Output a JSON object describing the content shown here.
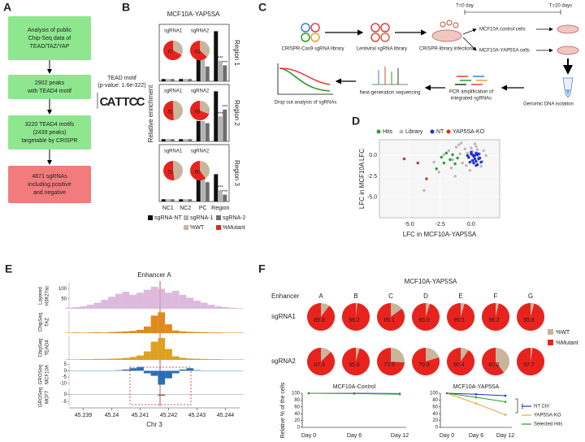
{
  "panel_a": {
    "label": "A",
    "steps": [
      [
        "Analysis of public",
        "Chip-Seq data of",
        "TEAD/TAZ/YAP"
      ],
      [
        "2902 peaks",
        "with TEAD4 motif"
      ],
      [
        "3220 TEAD4 motifs",
        "(2439 peaks)",
        "targetable by CRISPR"
      ],
      [
        "4871 sgRNAs",
        "including positive",
        "and negative"
      ]
    ],
    "motif_title": [
      "TEAD motif",
      "(p-value: 1.6e-322)"
    ],
    "motif_letters": [
      "C",
      "A",
      "T",
      "T",
      "C",
      "C"
    ]
  },
  "panel_c": {
    "label": "C",
    "texts": [
      [
        "T=0 day"
      ],
      [
        "T=20 days"
      ],
      [
        "MCF10A control cells"
      ],
      [
        "MCF10A-YAP5SA cells"
      ],
      [
        "CRISPR-Cas9 sgRNA library"
      ],
      [
        "Lentiviral sgRNA library"
      ],
      [
        "CRISPR-library infections"
      ],
      [
        "Genomic DNA isolation"
      ],
      [
        "PCR amplification of",
        "integrated sgRNAs"
      ],
      [
        "Next-generation sequencing"
      ],
      [
        "Drop out analysis of sgRNAs"
      ]
    ]
  },
  "chart_data": [
    {
      "label": "B",
      "type": "bar-panels",
      "title": "MCF10A-YAP5SA",
      "y_label": "Relative enrichment",
      "categories": [
        "NC1",
        "NC2",
        "PC",
        "Region"
      ],
      "series": [
        {
          "name": "sgRNA-NT",
          "color": "#111111"
        },
        {
          "name": "sgRNA-1",
          "color": "#b3b3b3"
        },
        {
          "name": "sgRNA-2",
          "color": "#6e6e6e"
        }
      ],
      "ylim": [
        0,
        25
      ],
      "pie_legend": [
        {
          "name": "%WT",
          "color": "#c9b59c"
        },
        {
          "name": "%Mutant",
          "color": "#e8231e"
        }
      ],
      "panels": [
        {
          "label": "Region 1",
          "values": [
            [
              1,
              1,
              10,
              22
            ],
            [
              1,
              1,
              9.5,
              9
            ],
            [
              1,
              1,
              6.5,
              7
            ]
          ],
          "sig": [
            "***",
            "***"
          ],
          "pies": [
            {
              "label": "sgRNA1",
              "value": 67
            },
            {
              "label": "sgRNA2",
              "value": 63
            }
          ]
        },
        {
          "label": "Region 2",
          "values": [
            [
              1,
              1,
              9,
              22
            ],
            [
              1,
              1,
              9,
              11
            ],
            [
              1,
              1,
              8,
              14
            ]
          ],
          "sig": [
            "***",
            "***"
          ],
          "pies": [
            {
              "label": "sgRNA1",
              "value": 51
            },
            {
              "label": "sgRNA2",
              "value": 69
            }
          ]
        },
        {
          "label": "Region 3",
          "values": [
            [
              1,
              1,
              10,
              12
            ],
            [
              1,
              1,
              10,
              5
            ],
            [
              1,
              1,
              8.5,
              3
            ]
          ],
          "sig": [
            "***",
            "***"
          ],
          "pies": [
            {
              "label": "sgRNA1",
              "value": 52
            },
            {
              "label": "sgRNA2",
              "value": 60
            }
          ]
        }
      ]
    },
    {
      "label": "D",
      "type": "scatter",
      "x_label": "LFC in MCF10A-YAP5SA",
      "y_label": "LFC in MCF10A LFC",
      "xlim": [
        -7.4,
        2.3
      ],
      "ylim": [
        -7.5,
        1.9
      ],
      "xticks": [
        {
          "value": -5,
          "label": "-5.0"
        },
        {
          "value": -2.5,
          "label": "-2.5"
        },
        {
          "value": 0,
          "label": "0.0"
        }
      ],
      "yticks": [
        {
          "value": 0,
          "label": "0.0"
        },
        {
          "value": -2.5,
          "label": "-2.5"
        },
        {
          "value": -5,
          "label": "-5.0"
        }
      ],
      "series": [
        {
          "name": "Hits",
          "color": "#2ca02c",
          "x": [
            -2.4,
            -2.0,
            -1.7,
            -1.3,
            -2.8,
            -1.5,
            -2.2,
            -1.1
          ],
          "y": [
            -0.2,
            0.3,
            -0.5,
            -1.0,
            -1.6,
            0.1,
            -0.9,
            -0.3
          ]
        },
        {
          "name": "Library",
          "color": "#b9b9b9",
          "x": [
            -1.8,
            -1.2,
            -0.9,
            -0.5,
            -0.2,
            0.1,
            0.4,
            0.7,
            1.0,
            -1.5,
            -0.7,
            -0.3,
            0.2,
            0.6,
            -1.0,
            -0.4,
            0.0,
            0.5,
            0.9,
            -2.2,
            -3.0,
            -1.6,
            -0.8,
            0.3,
            1.2,
            -2.6,
            -1.3,
            -0.1,
            0.8,
            -3.8
          ],
          "y": [
            0.6,
            1.0,
            0.2,
            0.8,
            -0.3,
            0.5,
            1.1,
            0.2,
            0.6,
            -0.5,
            -0.9,
            0.3,
            -0.6,
            -0.2,
            1.3,
            -1.2,
            0.9,
            0.7,
            -0.7,
            0.1,
            -0.8,
            -1.5,
            1.5,
            1.4,
            0.0,
            -2.0,
            -2.5,
            -1.8,
            -1.3,
            -4.2
          ]
        },
        {
          "name": "NT",
          "color": "#1f2fd6",
          "x": [
            0.0,
            0.2,
            0.4,
            0.6,
            -0.2,
            0.1,
            0.3,
            0.5,
            0.7,
            -0.1,
            0.2,
            0.4,
            0.6,
            0.0,
            0.3,
            0.5,
            -0.3,
            0.1,
            0.8,
            0.4
          ],
          "y": [
            0.2,
            -0.1,
            0.3,
            -0.4,
            -0.2,
            -0.6,
            0.0,
            0.1,
            -0.3,
            -0.8,
            -0.9,
            -0.7,
            0.2,
            0.4,
            -0.4,
            -1.1,
            0.0,
            0.1,
            -0.8,
            -1.2
          ]
        },
        {
          "name": "YAP5SA-KO",
          "color": "#e8231e",
          "x": [
            -5.4,
            -4.3,
            -3.6
          ],
          "y": [
            -0.4,
            -0.9,
            -2.8
          ]
        }
      ]
    },
    {
      "label": "E",
      "type": "tracks",
      "title": "Enhancer A",
      "x_label": "Chr 3",
      "x": [
        45.2385,
        45.23875,
        45.239,
        45.23925,
        45.2395,
        45.23975,
        45.24,
        45.24025,
        45.2405,
        45.24075,
        45.241,
        45.24125,
        45.2415,
        45.24175,
        45.242,
        45.24225,
        45.2425,
        45.24275,
        45.243,
        45.24325,
        45.2435,
        45.24375,
        45.244,
        45.24425,
        45.2445
      ],
      "xlim": [
        45.2385,
        45.2445
      ],
      "xticks": [
        45.239,
        45.24,
        45.241,
        45.242,
        45.243,
        45.244
      ],
      "tracks": [
        {
          "name": [
            "Layered",
            "H3K27ac"
          ],
          "color": "#d4a8d4",
          "ylim": [
            0,
            130
          ],
          "yticks": [
            50,
            100
          ],
          "values": [
            5,
            8,
            12,
            20,
            30,
            45,
            60,
            75,
            85,
            70,
            80,
            95,
            110,
            100,
            80,
            90,
            70,
            55,
            40,
            30,
            20,
            12,
            8,
            5,
            3
          ]
        },
        {
          "name": [
            "ChipSeq",
            "TAZ"
          ],
          "color": "#e08a1e",
          "ylim": [
            0,
            100
          ],
          "values": [
            2,
            3,
            2,
            3,
            4,
            3,
            5,
            6,
            8,
            10,
            15,
            30,
            80,
            95,
            40,
            12,
            8,
            6,
            5,
            4,
            3,
            3,
            2,
            2,
            2
          ]
        },
        {
          "name": [
            "ChipSeq",
            "TEAD4"
          ],
          "color": "#e0a020",
          "ylim": [
            0,
            100
          ],
          "values": [
            2,
            2,
            3,
            3,
            4,
            4,
            5,
            6,
            8,
            12,
            18,
            35,
            75,
            90,
            45,
            15,
            9,
            6,
            5,
            4,
            3,
            3,
            2,
            2,
            2
          ]
        },
        {
          "name": [
            "GROSeq",
            "MCF10A"
          ],
          "color": "#2a6fb5",
          "ylim": [
            -12,
            6
          ],
          "yticks": [
            5,
            0,
            -5,
            -10
          ],
          "values": [
            0,
            0,
            0,
            0,
            0,
            0,
            0,
            0.5,
            1,
            2,
            3,
            -2,
            -4,
            -11,
            -6,
            -2,
            1,
            2,
            0.5,
            0,
            0,
            0,
            0,
            0,
            0
          ]
        },
        {
          "name": [
            "GROSeq",
            "MCF7"
          ],
          "color": "#777777",
          "ylim": [
            -8,
            4
          ],
          "yticks": [
            0,
            -5
          ],
          "values": [
            0,
            0,
            0,
            0,
            0,
            0,
            0,
            0,
            0,
            0,
            0,
            0,
            0,
            -1,
            0,
            0,
            0,
            0,
            0,
            0,
            0,
            0,
            0,
            0,
            0
          ]
        }
      ]
    },
    {
      "label": "F",
      "type": "pie-grid",
      "title": "MCF10A-YAP5SA",
      "row_header": "Enhancer",
      "categories": [
        "A",
        "B",
        "C",
        "D",
        "E",
        "F",
        "G"
      ],
      "series": [
        {
          "name": "sgRNA1",
          "values": [
            89.8,
            98.2,
            85.1,
            95.0,
            95.5,
            96.2,
            95.8
          ],
          "value_labels": [
            "89.8",
            "98.2",
            "85.1",
            "95.0",
            "95.5",
            "96.2",
            "95.8"
          ]
        },
        {
          "name": "sgRNA2",
          "values": [
            87.3,
            95.6,
            73.9,
            79.9,
            90.4,
            60.2,
            97.7
          ],
          "value_labels": [
            "87.3",
            "95.6",
            "73.9",
            "79.9",
            "90.4",
            "60.2",
            "97.7"
          ]
        }
      ],
      "legend": [
        {
          "name": "%WT",
          "color": "#c9b59c"
        },
        {
          "name": "%Mutant",
          "color": "#e8231e"
        }
      ]
    },
    {
      "type": "line",
      "title": "MCF10A-Control",
      "y_label": "Relative % of the cells",
      "categories": [
        "Day 0",
        "Day 6",
        "Day 12"
      ],
      "ylim": [
        0,
        100
      ],
      "yticks": [
        0,
        20,
        40,
        60,
        80,
        100
      ],
      "series": [
        {
          "color": "#1f2fd6",
          "values": [
            100,
            100,
            99
          ]
        },
        {
          "color": "#f5a040",
          "values": [
            100,
            99,
            98
          ]
        },
        {
          "color": "#2e9a2e",
          "values": [
            100,
            99,
            97
          ]
        }
      ]
    },
    {
      "type": "line",
      "title": "MCF10A-YAP5SA",
      "annotation": "***",
      "categories": [
        "Day 0",
        "Day 6",
        "Day 12"
      ],
      "ylim": [
        0,
        100
      ],
      "yticks": [
        0,
        20,
        40,
        60,
        80,
        100
      ],
      "series": [
        {
          "name": "NT Ctrl",
          "color": "#1f2fd6",
          "values": [
            100,
            97,
            93
          ]
        },
        {
          "name": "YAP5SA-KO",
          "color": "#f5a040",
          "values": [
            100,
            70,
            37
          ]
        },
        {
          "name": "Selected Hits",
          "color": "#2e9a2e",
          "values": [
            100,
            88,
            75
          ]
        }
      ]
    }
  ]
}
